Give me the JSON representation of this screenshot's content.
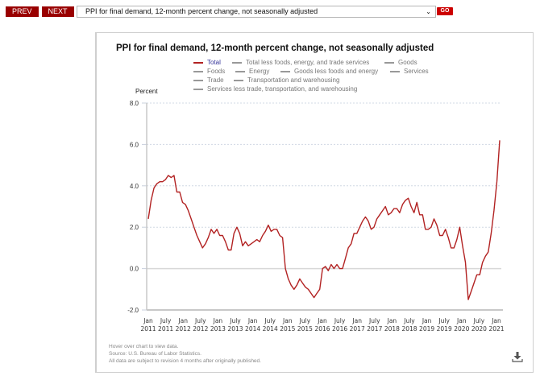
{
  "toolbar": {
    "prev_label": "PREV",
    "next_label": "NEXT",
    "select_value": "PPI for final demand, 12-month percent change, not seasonally adjusted",
    "go_label": "GO"
  },
  "panel": {
    "footnotes": [
      "Hover over chart to view data.",
      "Source: U.S. Bureau of Labor Statistics.",
      "All data are subject to revision 4 months after originally published."
    ],
    "download_icon": "download-icon"
  },
  "chart_data": {
    "type": "line",
    "title": "PPI for final demand, 12-month percent change, not seasonally adjusted",
    "ylabel": "Percent",
    "xlabel": "",
    "ylim": [
      -2.0,
      8.0
    ],
    "yticks": [
      "8.0",
      "6.0",
      "4.0",
      "2.0",
      "0.0",
      "-2.0"
    ],
    "ytick_values": [
      8,
      6,
      4,
      2,
      0,
      -2
    ],
    "grid": true,
    "legend_position": "top",
    "legend": [
      {
        "label": "Total",
        "active": true
      },
      {
        "label": "Total less foods, energy, and trade services",
        "active": false
      },
      {
        "label": "Goods",
        "active": false
      },
      {
        "label": "Foods",
        "active": false
      },
      {
        "label": "Energy",
        "active": false
      },
      {
        "label": "Goods less foods and energy",
        "active": false
      },
      {
        "label": "Services",
        "active": false
      },
      {
        "label": "Trade",
        "active": false
      },
      {
        "label": "Transportation and warehousing",
        "active": false
      },
      {
        "label": "Services less trade, transportation, and warehousing",
        "active": false
      }
    ],
    "xticks": [
      {
        "m": 0,
        "l1": "Jan",
        "l2": "2011"
      },
      {
        "m": 6,
        "l1": "July",
        "l2": "2011"
      },
      {
        "m": 12,
        "l1": "Jan",
        "l2": "2012"
      },
      {
        "m": 18,
        "l1": "July",
        "l2": "2012"
      },
      {
        "m": 24,
        "l1": "Jan",
        "l2": "2013"
      },
      {
        "m": 30,
        "l1": "July",
        "l2": "2013"
      },
      {
        "m": 36,
        "l1": "Jan",
        "l2": "2014"
      },
      {
        "m": 42,
        "l1": "July",
        "l2": "2014"
      },
      {
        "m": 48,
        "l1": "Jan",
        "l2": "2015"
      },
      {
        "m": 54,
        "l1": "July",
        "l2": "2015"
      },
      {
        "m": 60,
        "l1": "Jan",
        "l2": "2016"
      },
      {
        "m": 66,
        "l1": "July",
        "l2": "2016"
      },
      {
        "m": 72,
        "l1": "Jan",
        "l2": "2017"
      },
      {
        "m": 78,
        "l1": "July",
        "l2": "2017"
      },
      {
        "m": 84,
        "l1": "Jan",
        "l2": "2018"
      },
      {
        "m": 90,
        "l1": "July",
        "l2": "2018"
      },
      {
        "m": 96,
        "l1": "Jan",
        "l2": "2019"
      },
      {
        "m": 102,
        "l1": "July",
        "l2": "2019"
      },
      {
        "m": 108,
        "l1": "Jan",
        "l2": "2020"
      },
      {
        "m": 114,
        "l1": "July",
        "l2": "2020"
      },
      {
        "m": 120,
        "l1": "Jan",
        "l2": "2021"
      }
    ],
    "x_start": "Jan 2011",
    "x_end": "Apr 2021",
    "series": [
      {
        "name": "Total",
        "color": "#b22222",
        "values": [
          2.4,
          3.3,
          3.9,
          4.1,
          4.2,
          4.2,
          4.3,
          4.5,
          4.4,
          4.5,
          3.7,
          3.7,
          3.2,
          3.1,
          2.8,
          2.4,
          2.0,
          1.6,
          1.3,
          1.0,
          1.2,
          1.5,
          1.9,
          1.7,
          1.9,
          1.6,
          1.6,
          1.3,
          0.9,
          0.9,
          1.7,
          2.0,
          1.7,
          1.1,
          1.3,
          1.1,
          1.2,
          1.3,
          1.4,
          1.3,
          1.6,
          1.8,
          2.1,
          1.8,
          1.9,
          1.9,
          1.6,
          1.5,
          0.0,
          -0.5,
          -0.8,
          -1.0,
          -0.8,
          -0.5,
          -0.7,
          -0.9,
          -1.0,
          -1.2,
          -1.4,
          -1.2,
          -1.0,
          0.0,
          0.1,
          -0.1,
          0.2,
          0.0,
          0.2,
          0.0,
          0.0,
          0.5,
          1.0,
          1.2,
          1.7,
          1.7,
          2.0,
          2.3,
          2.5,
          2.3,
          1.9,
          2.0,
          2.4,
          2.6,
          2.8,
          3.0,
          2.6,
          2.7,
          2.9,
          2.9,
          2.7,
          3.1,
          3.3,
          3.4,
          3.0,
          2.7,
          3.2,
          2.6,
          2.6,
          1.9,
          1.9,
          2.0,
          2.4,
          2.1,
          1.6,
          1.6,
          1.9,
          1.5,
          1.0,
          1.0,
          1.4,
          2.0,
          1.1,
          0.3,
          -1.5,
          -1.1,
          -0.7,
          -0.3,
          -0.3,
          0.3,
          0.6,
          0.8,
          1.7,
          2.8,
          4.2,
          6.2
        ]
      }
    ]
  }
}
